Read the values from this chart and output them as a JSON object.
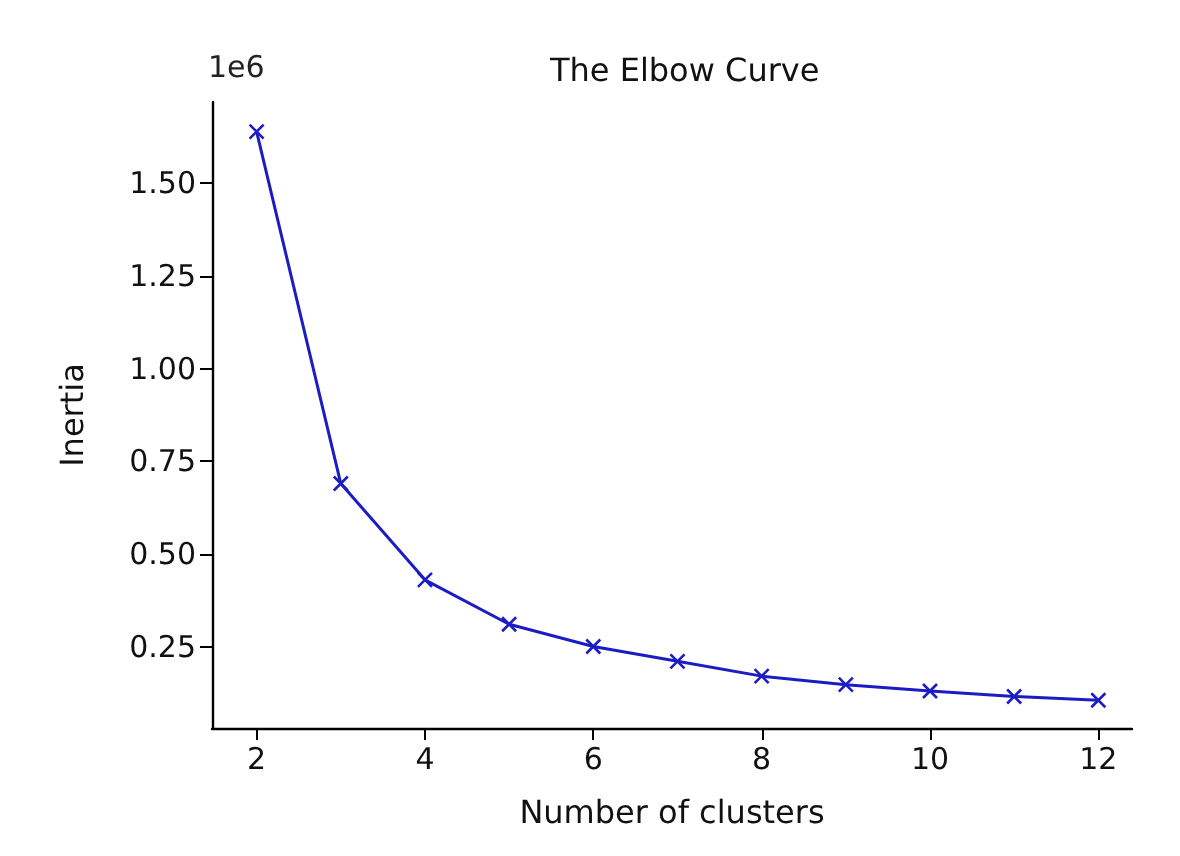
{
  "chart_data": {
    "type": "line",
    "title": "The Elbow Curve",
    "xlabel": "Number of clusters",
    "ylabel": "Inertia",
    "annotations": [
      "1e6"
    ],
    "x": [
      2,
      3,
      4,
      5,
      6,
      7,
      8,
      9,
      10,
      11,
      12
    ],
    "series": [
      {
        "color": "#1c1cc4",
        "values": [
          1.64,
          0.69,
          0.43,
          0.31,
          0.25,
          0.21,
          0.17,
          0.147,
          0.13,
          0.115,
          0.105
        ]
      }
    ],
    "xlim": [
      1.47,
      12.4
    ],
    "xticks": [
      2,
      4,
      6,
      8,
      10,
      12
    ],
    "ylim": [
      0.03,
      1.72
    ],
    "yticks": [
      0.25,
      {
        "value": 0.5,
        "label": "0.50"
      },
      0.75,
      {
        "value": 1,
        "label": "1.00"
      },
      1.25,
      {
        "value": 1.5,
        "label": "1.50"
      }
    ],
    "grid": false,
    "marker": "cross",
    "line_style": "solid"
  }
}
